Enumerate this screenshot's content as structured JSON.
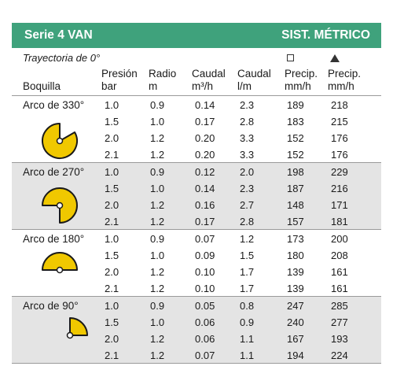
{
  "header": {
    "series": "Serie 4 VAN",
    "system": "SIST. MÉTRICO"
  },
  "trajectory": "Trayectoria de 0°",
  "columns": {
    "boquilla": "Boquilla",
    "presion": [
      "Presión",
      "bar"
    ],
    "radio": [
      "Radio",
      "m"
    ],
    "caudal_m3": [
      "Caudal",
      "m³/h"
    ],
    "caudal_l": [
      "Caudal",
      "l/m"
    ],
    "precip_sq": [
      "Precip.",
      "mm/h"
    ],
    "precip_tri": [
      "Precip.",
      "mm/h"
    ]
  },
  "icons": {
    "square": "square-outline-icon",
    "triangle": "triangle-filled-icon"
  },
  "colors": {
    "header_bg": "#3fa27c",
    "symbol_fill": "#f0c800",
    "band": "#e4e4e4"
  },
  "groups": [
    {
      "label": "Arco de 330°",
      "arc_degrees": 330,
      "rows": [
        [
          "1.0",
          "0.9",
          "0.14",
          "2.3",
          "189",
          "218"
        ],
        [
          "1.5",
          "1.0",
          "0.17",
          "2.8",
          "183",
          "215"
        ],
        [
          "2.0",
          "1.2",
          "0.20",
          "3.3",
          "152",
          "176"
        ],
        [
          "2.1",
          "1.2",
          "0.20",
          "3.3",
          "152",
          "176"
        ]
      ]
    },
    {
      "label": "Arco de 270°",
      "arc_degrees": 270,
      "rows": [
        [
          "1.0",
          "0.9",
          "0.12",
          "2.0",
          "198",
          "229"
        ],
        [
          "1.5",
          "1.0",
          "0.14",
          "2.3",
          "187",
          "216"
        ],
        [
          "2.0",
          "1.2",
          "0.16",
          "2.7",
          "148",
          "171"
        ],
        [
          "2.1",
          "1.2",
          "0.17",
          "2.8",
          "157",
          "181"
        ]
      ]
    },
    {
      "label": "Arco de 180°",
      "arc_degrees": 180,
      "rows": [
        [
          "1.0",
          "0.9",
          "0.07",
          "1.2",
          "173",
          "200"
        ],
        [
          "1.5",
          "1.0",
          "0.09",
          "1.5",
          "180",
          "208"
        ],
        [
          "2.0",
          "1.2",
          "0.10",
          "1.7",
          "139",
          "161"
        ],
        [
          "2.1",
          "1.2",
          "0.10",
          "1.7",
          "139",
          "161"
        ]
      ]
    },
    {
      "label": "Arco de 90°",
      "arc_degrees": 90,
      "rows": [
        [
          "1.0",
          "0.9",
          "0.05",
          "0.8",
          "247",
          "285"
        ],
        [
          "1.5",
          "1.0",
          "0.06",
          "0.9",
          "240",
          "277"
        ],
        [
          "2.0",
          "1.2",
          "0.06",
          "1.1",
          "167",
          "193"
        ],
        [
          "2.1",
          "1.2",
          "0.07",
          "1.1",
          "194",
          "224"
        ]
      ]
    }
  ]
}
